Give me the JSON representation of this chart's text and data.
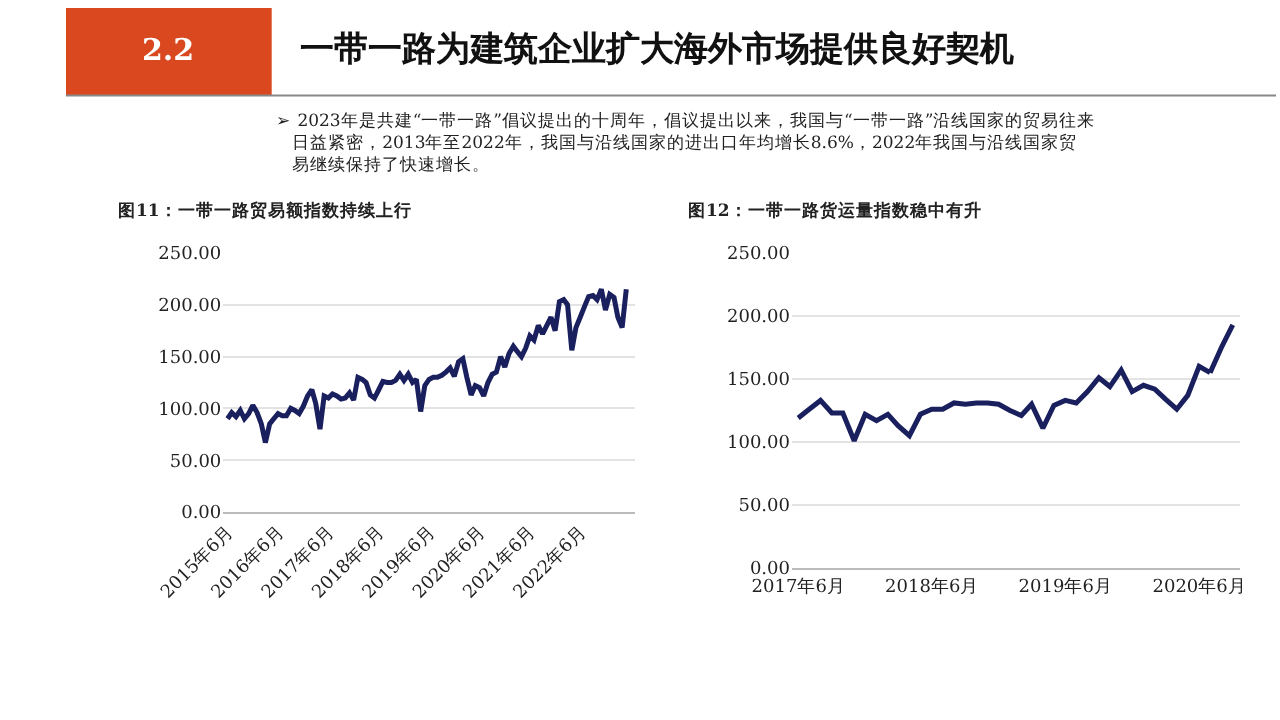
{
  "chart_data": [
    {
      "type": "other",
      "title": "一带一路为建筑企业扩大海外市场提供良好契机",
      "annotations": [
        "2.2",
        "➢ 2023年是共建“一带一路”倡议提出的十周年，倡议提出以来，我国与“一带一路”沿线国家的贸易往来日益紧密，2013年至2022年，我国与沿线国家的进出口年均增长8.6%，2022年我国与沿线国家贸易继续保持了快速增长。"
      ]
    },
    {
      "type": "line",
      "title": "图11：一带一路贸易额指数持续上行",
      "x": [
        "2015-06",
        "2015-07",
        "2015-08",
        "2015-09",
        "2015-10",
        "2015-11",
        "2015-12",
        "2016-01",
        "2016-02",
        "2016-03",
        "2016-04",
        "2016-05",
        "2016-06",
        "2016-07",
        "2016-08",
        "2016-09",
        "2016-10",
        "2016-11",
        "2016-12",
        "2017-01",
        "2017-02",
        "2017-03",
        "2017-04",
        "2017-05",
        "2017-06",
        "2017-07",
        "2017-08",
        "2017-09",
        "2017-10",
        "2017-11",
        "2017-12",
        "2018-01",
        "2018-02",
        "2018-03",
        "2018-04",
        "2018-05",
        "2018-06",
        "2018-07",
        "2018-08",
        "2018-09",
        "2018-10",
        "2018-11",
        "2018-12",
        "2019-01",
        "2019-02",
        "2019-03",
        "2019-04",
        "2019-05",
        "2019-06",
        "2019-07",
        "2019-08",
        "2019-09",
        "2019-10",
        "2019-11",
        "2019-12",
        "2020-01",
        "2020-02",
        "2020-03",
        "2020-04",
        "2020-05",
        "2020-06",
        "2020-07",
        "2020-08",
        "2020-09",
        "2020-10",
        "2020-11",
        "2020-12",
        "2021-01",
        "2021-02",
        "2021-03",
        "2021-04",
        "2021-05",
        "2021-06",
        "2021-07",
        "2021-08",
        "2021-09",
        "2021-10",
        "2021-11",
        "2021-12",
        "2022-01",
        "2022-02",
        "2022-03",
        "2022-04",
        "2022-05",
        "2022-06",
        "2022-07",
        "2022-08",
        "2022-09",
        "2022-10",
        "2022-11",
        "2022-12",
        "2023-01",
        "2023-02",
        "2023-03",
        "2023-04",
        "2023-05"
      ],
      "series": [
        {
          "color": "#1a1f5e",
          "values": [
            90,
            96,
            92,
            98,
            90,
            95,
            103,
            96,
            85,
            67,
            85,
            90,
            95,
            93,
            93,
            100,
            98,
            95,
            102,
            112,
            118,
            105,
            80,
            112,
            110,
            114,
            112,
            109,
            110,
            115,
            108,
            130,
            128,
            125,
            113,
            110,
            118,
            126,
            125,
            125,
            127,
            133,
            127,
            133,
            125,
            128,
            97,
            122,
            128,
            130,
            130,
            132,
            135,
            139,
            131,
            145,
            148,
            130,
            113,
            122,
            120,
            112,
            125,
            133,
            135,
            150,
            140,
            153,
            160,
            155,
            150,
            158,
            170,
            166,
            180,
            172,
            180,
            188,
            175,
            203,
            205,
            200,
            156,
            178,
            188,
            198,
            208,
            209,
            205,
            215,
            195,
            210,
            207,
            188,
            178,
            215
          ]
        }
      ],
      "xlim": [
        "2015-05-01",
        "2023-07-01"
      ],
      "xticks": [
        {
          "value": "2015-06",
          "label": "2015年6月"
        },
        {
          "value": "2016-06",
          "label": "2016年6月"
        },
        {
          "value": "2017-06",
          "label": "2017年6月"
        },
        {
          "value": "2018-06",
          "label": "2018年6月"
        },
        {
          "value": "2019-06",
          "label": "2019年6月"
        },
        {
          "value": "2020-06",
          "label": "2020年6月"
        },
        {
          "value": "2021-06",
          "label": "2021年6月"
        },
        {
          "value": "2022-06",
          "label": "2022年6月"
        }
      ],
      "ylim": [
        0,
        250
      ],
      "yticks": [
        {
          "value": 0,
          "label": "0.00"
        },
        {
          "value": 50,
          "label": "50.00"
        },
        {
          "value": 100,
          "label": "100.00"
        },
        {
          "value": 150,
          "label": "150.00"
        },
        {
          "value": 200,
          "label": "200.00"
        },
        {
          "value": 250,
          "label": "250.00"
        }
      ],
      "grid": "y",
      "marker": "none",
      "line_style": "solid"
    },
    {
      "type": "line",
      "title": "图12：一带一路货运量指数稳中有升",
      "x": [
        "2017-06",
        "2017-07",
        "2017-08",
        "2017-09",
        "2017-10",
        "2017-11",
        "2017-12",
        "2018-01",
        "2018-02",
        "2018-03",
        "2018-04",
        "2018-05",
        "2018-06",
        "2018-07",
        "2018-08",
        "2018-09",
        "2018-10",
        "2018-11",
        "2018-12",
        "2019-01",
        "2019-02",
        "2019-03",
        "2019-04",
        "2019-05",
        "2019-06",
        "2019-07",
        "2019-08",
        "2019-09",
        "2019-10",
        "2019-11",
        "2019-12",
        "2020-01",
        "2020-02",
        "2020-03",
        "2020-04",
        "2020-05",
        "2020-06",
        "2020-07"
      ],
      "series": [
        {
          "color": "#1a1f5e",
          "values": [
            119,
            126,
            133,
            123,
            123,
            101,
            122,
            117,
            122,
            113,
            105,
            122,
            126,
            126,
            131,
            130,
            131,
            131,
            130,
            125,
            121,
            130,
            111,
            129,
            133,
            131,
            140,
            151,
            144,
            157,
            140,
            145,
            142,
            134,
            126,
            137,
            160,
            155
          ]
        },
        {
          "color": "#1a1f5e",
          "x": [
            "2020-07",
            "2020-08",
            "2020-09"
          ],
          "values": [
            155,
            175,
            193
          ]
        }
      ],
      "xlim": [
        "2017-05-15",
        "2020-09-20"
      ],
      "xticks": [
        {
          "value": "2017-06",
          "label": "2017年6月"
        },
        {
          "value": "2018-06",
          "label": "2018年6月"
        },
        {
          "value": "2019-06",
          "label": "2019年6月"
        },
        {
          "value": "2020-06",
          "label": "2020年6月"
        }
      ],
      "ylim": [
        0,
        250
      ],
      "yticks": [
        {
          "value": 0,
          "label": "0.00"
        },
        {
          "value": 50,
          "label": "50.00"
        },
        {
          "value": 100,
          "label": "100.00"
        },
        {
          "value": 150,
          "label": "150.00"
        },
        {
          "value": 200,
          "label": "200.00"
        },
        {
          "value": 250,
          "label": "250.00"
        }
      ],
      "grid": "y",
      "marker": "none",
      "line_style": "solid"
    }
  ]
}
